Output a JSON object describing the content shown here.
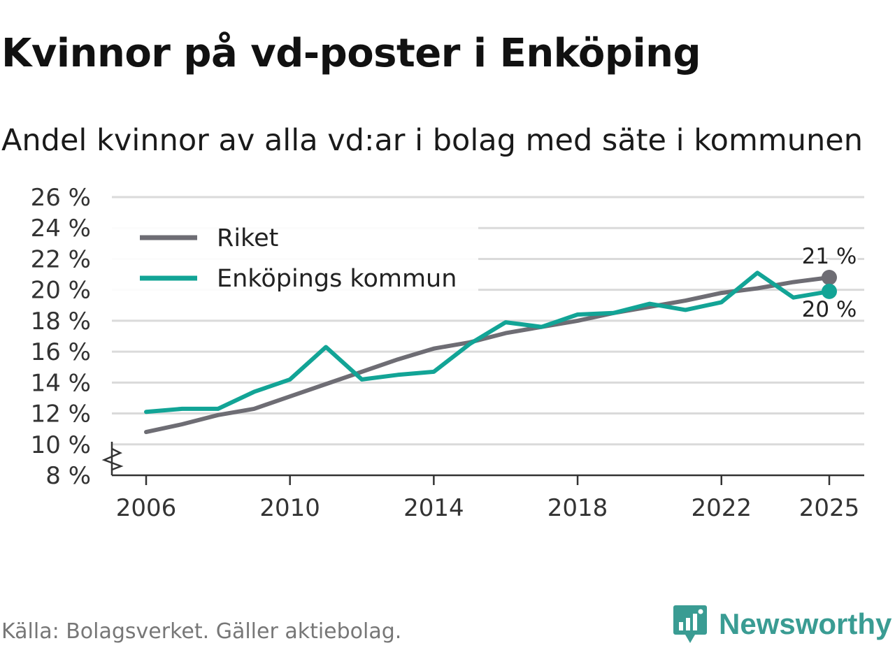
{
  "title": "Kvinnor på vd-poster i Enköping",
  "subtitle": "Andel kvinnor av alla vd:ar i bolag med säte i kommunen",
  "source": "Källa: Bolagsverket. Gäller aktiebolag.",
  "brand": {
    "name": "Newsworthy",
    "icon": "newsworthy-logo-icon",
    "color": "#3a9c93"
  },
  "chart_data": {
    "type": "line",
    "title": "Kvinnor på vd-poster i Enköping",
    "xlabel": "",
    "ylabel": "",
    "ylim": [
      8,
      26
    ],
    "xlim": [
      2006,
      2025
    ],
    "y_ticks": [
      8,
      10,
      12,
      14,
      16,
      18,
      20,
      22,
      24,
      26
    ],
    "y_tick_labels": [
      "8 %",
      "10 %",
      "12 %",
      "14 %",
      "16 %",
      "18 %",
      "20 %",
      "22 %",
      "24 %",
      "26 %"
    ],
    "x_ticks": [
      2006,
      2010,
      2014,
      2018,
      2022,
      2025
    ],
    "x_tick_labels": [
      "2006",
      "2010",
      "2014",
      "2018",
      "2022",
      "2025"
    ],
    "axis_break": true,
    "grid": true,
    "legend_position": "top-left",
    "x": [
      2006,
      2007,
      2008,
      2009,
      2010,
      2011,
      2012,
      2013,
      2014,
      2015,
      2016,
      2017,
      2018,
      2019,
      2020,
      2021,
      2022,
      2023,
      2024,
      2025
    ],
    "series": [
      {
        "name": "Riket",
        "color": "#6e6d74",
        "values": [
          10.8,
          11.3,
          11.9,
          12.3,
          13.1,
          13.9,
          14.7,
          15.5,
          16.2,
          16.6,
          17.2,
          17.6,
          18.0,
          18.5,
          18.9,
          19.3,
          19.8,
          20.1,
          20.5,
          20.8
        ],
        "end_label": "21 %"
      },
      {
        "name": "Enköpings kommun",
        "color": "#12a496",
        "values": [
          12.1,
          12.3,
          12.3,
          13.4,
          14.2,
          16.3,
          14.2,
          14.5,
          14.7,
          16.5,
          17.9,
          17.6,
          18.4,
          18.5,
          19.1,
          18.7,
          19.2,
          21.1,
          19.5,
          19.9
        ],
        "end_label": "20 %"
      }
    ]
  }
}
